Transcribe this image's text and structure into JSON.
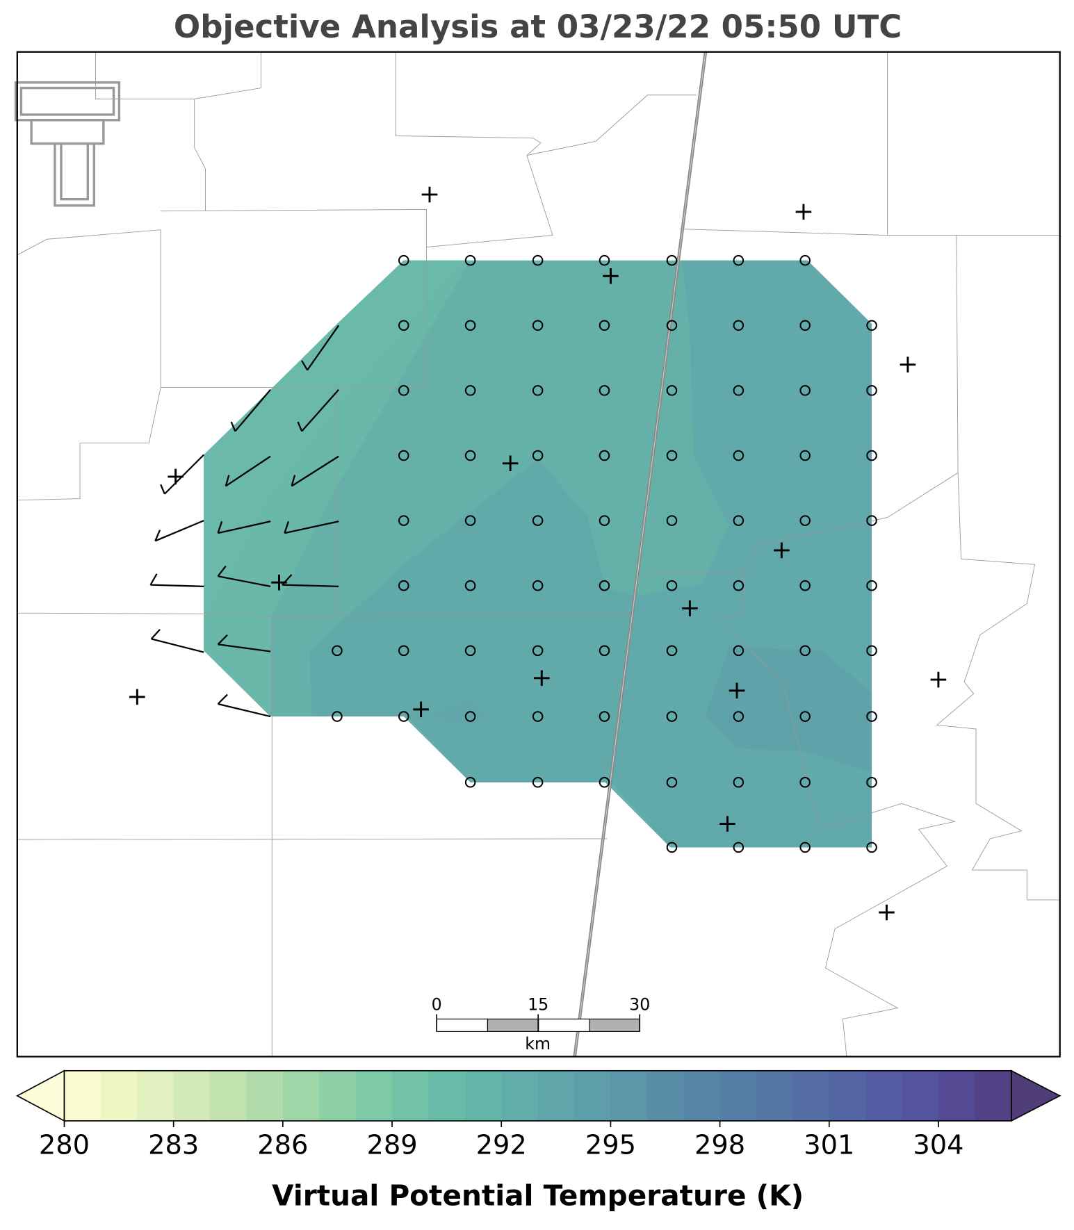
{
  "title": "Objective Analysis at 03/23/22 05:50 UTC",
  "colorbar": {
    "levels": [
      280,
      281,
      282,
      283,
      284,
      285,
      286,
      287,
      288,
      289,
      290,
      291,
      292,
      293,
      294,
      295,
      296,
      297,
      298,
      299,
      300,
      301,
      302,
      303,
      304,
      305,
      306
    ],
    "colors": [
      "#fbfbd0",
      "#f0f5c6",
      "#e2efbe",
      "#d3e9b7",
      "#c2e3b0",
      "#b0dcab",
      "#9fd6a8",
      "#8ed0a6",
      "#7ecaa6",
      "#72c3a7",
      "#69bca8",
      "#63b5a9",
      "#61adaa",
      "#5fa5aa",
      "#5d9eaa",
      "#5b96a9",
      "#5a8ea8",
      "#5886a7",
      "#567ea6",
      "#5576a5",
      "#546ea4",
      "#5365a3",
      "#535ca2",
      "#5453a0",
      "#544a94",
      "#534286"
    ],
    "under_color": "#fdfdd9",
    "over_color": "#4f3e78",
    "ticks": [
      280,
      283,
      286,
      289,
      292,
      295,
      298,
      301,
      304
    ],
    "label": "Virtual Potential Temperature (K)"
  },
  "scale_bar": {
    "ticks": [
      0,
      15,
      30
    ],
    "unit": "km"
  }
}
